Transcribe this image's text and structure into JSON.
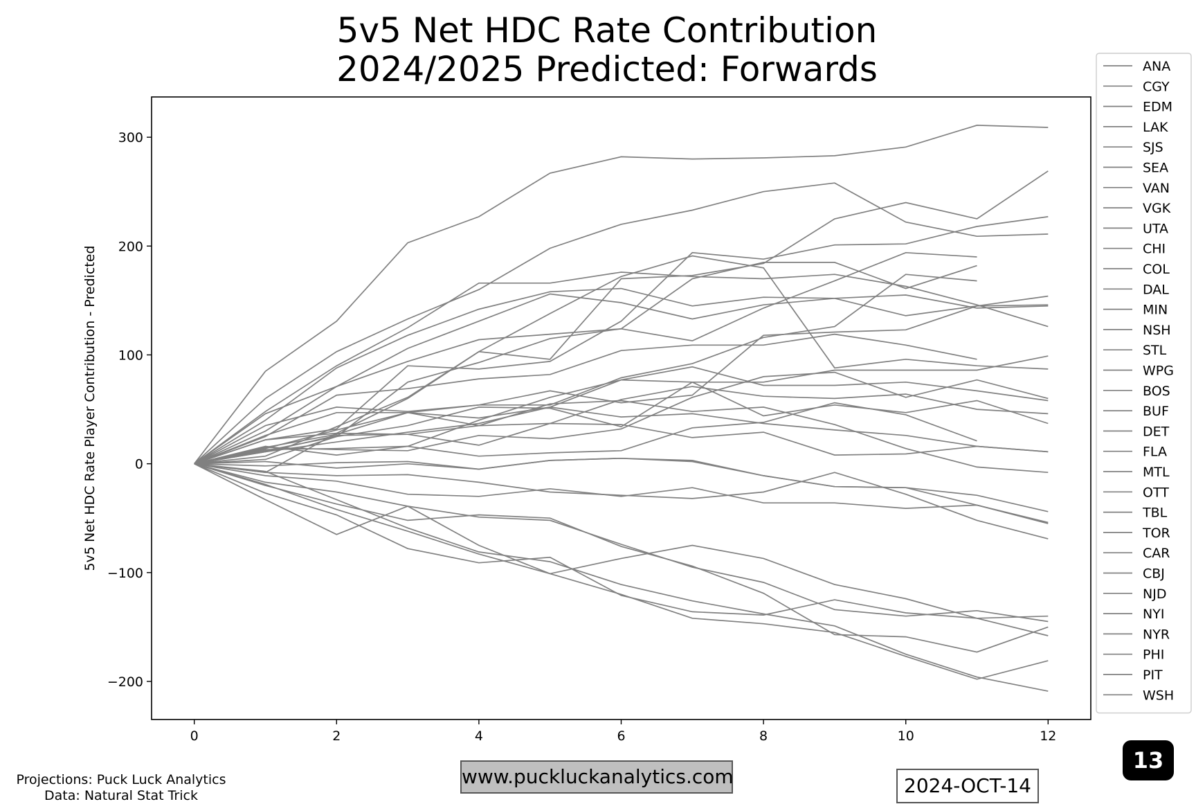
{
  "title_line1": "5v5 Net HDC Rate Contribution",
  "title_line2": "2024/2025 Predicted: Forwards",
  "footer": {
    "credit_line1": "Projections: Puck Luck Analytics",
    "credit_line2": "Data: Natural Stat Trick",
    "url": "www.puckluckanalytics.com",
    "date": "2024-OCT-14",
    "badge": "13"
  },
  "chart_data": {
    "type": "line",
    "title": "5v5 Net HDC Rate Contribution 2024/2025 Predicted: Forwards",
    "xlabel": "",
    "ylabel": "5v5 Net HDC Rate Player Contribution - Predicted",
    "xlim": [
      -0.6,
      12.6
    ],
    "ylim": [
      -235,
      337
    ],
    "xticks": [
      0,
      2,
      4,
      6,
      8,
      10,
      12
    ],
    "yticks": [
      -200,
      -100,
      0,
      100,
      200,
      300
    ],
    "ytick_labels": [
      "−200",
      "−100",
      "0",
      "100",
      "200",
      "300"
    ],
    "grid": false,
    "legend_position": "right-outside",
    "line_color": "#808080",
    "series": [
      {
        "name": "ANA",
        "values": [
          0,
          85,
          131,
          203,
          227,
          267,
          282,
          280,
          281,
          283,
          291,
          311,
          309
        ]
      },
      {
        "name": "CGY",
        "values": [
          0,
          60,
          103,
          133,
          160,
          198,
          220,
          233,
          250,
          258,
          222,
          209,
          211
        ]
      },
      {
        "name": "EDM",
        "values": [
          0,
          48,
          90,
          125,
          166,
          166,
          176,
          172,
          170,
          174,
          163,
          146,
          126
        ]
      },
      {
        "name": "LAK",
        "values": [
          0,
          40,
          88,
          118,
          142,
          158,
          161,
          145,
          153,
          152,
          155,
          143,
          145
        ]
      },
      {
        "name": "SJS",
        "values": [
          0,
          30,
          71,
          106,
          131,
          156,
          148,
          133,
          146,
          152,
          136,
          145,
          154
        ]
      },
      {
        "name": "SEA",
        "values": [
          0,
          46,
          71,
          94,
          114,
          119,
          124,
          113,
          143,
          168,
          194,
          190,
          null
        ]
      },
      {
        "name": "VAN",
        "values": [
          0,
          25,
          63,
          69,
          78,
          82,
          104,
          109,
          109,
          119,
          109,
          96,
          null
        ]
      },
      {
        "name": "VGK",
        "values": [
          0,
          35,
          52,
          48,
          54,
          67,
          56,
          63,
          118,
          121,
          123,
          145,
          146
        ]
      },
      {
        "name": "UTA",
        "values": [
          0,
          22,
          32,
          90,
          87,
          94,
          131,
          194,
          188,
          201,
          202,
          218,
          227
        ]
      },
      {
        "name": "CHI",
        "values": [
          0,
          15,
          27,
          47,
          54,
          54,
          79,
          92,
          116,
          126,
          174,
          168,
          null
        ]
      },
      {
        "name": "COL",
        "values": [
          0,
          12,
          25,
          75,
          93,
          115,
          124,
          170,
          185,
          185,
          161,
          182,
          null
        ]
      },
      {
        "name": "DAL",
        "values": [
          0,
          -8,
          28,
          60,
          103,
          96,
          170,
          173,
          184,
          225,
          240,
          225,
          269
        ]
      },
      {
        "name": "MIN",
        "values": [
          0,
          26,
          47,
          47,
          42,
          52,
          77,
          89,
          72,
          72,
          75,
          67,
          58
        ]
      },
      {
        "name": "NSH",
        "values": [
          0,
          14,
          31,
          47,
          35,
          55,
          58,
          48,
          52,
          36,
          14,
          -3,
          -8
        ]
      },
      {
        "name": "STL",
        "values": [
          0,
          11,
          26,
          27,
          35,
          37,
          36,
          24,
          29,
          8,
          9,
          16,
          11
        ]
      },
      {
        "name": "WPG",
        "values": [
          0,
          7,
          34,
          61,
          103,
          138,
          172,
          191,
          180,
          88,
          96,
          90,
          87
        ]
      },
      {
        "name": "BOS",
        "values": [
          0,
          4,
          25,
          35,
          52,
          51,
          34,
          75,
          75,
          86,
          86,
          86,
          99
        ]
      },
      {
        "name": "BUF",
        "values": [
          0,
          15,
          13,
          12,
          26,
          23,
          32,
          61,
          80,
          84,
          61,
          77,
          60
        ]
      },
      {
        "name": "DET",
        "values": [
          0,
          22,
          28,
          27,
          17,
          37,
          59,
          71,
          62,
          60,
          64,
          50,
          46
        ]
      },
      {
        "name": "FLA",
        "values": [
          0,
          16,
          8,
          16,
          40,
          61,
          77,
          75,
          44,
          54,
          47,
          58,
          37
        ]
      },
      {
        "name": "MTL",
        "values": [
          0,
          13,
          14,
          16,
          7,
          10,
          12,
          33,
          38,
          56,
          45,
          21,
          null
        ]
      },
      {
        "name": "OTT",
        "values": [
          0,
          11,
          20,
          29,
          37,
          52,
          43,
          46,
          37,
          31,
          26,
          16,
          11
        ]
      },
      {
        "name": "TBL",
        "values": [
          0,
          2,
          -4,
          0,
          -5,
          3,
          5,
          2,
          -11,
          -21,
          -22,
          -29,
          -44
        ]
      },
      {
        "name": "TOR",
        "values": [
          0,
          -2,
          1,
          2,
          -5,
          3,
          5,
          3,
          -11,
          -21,
          -22,
          -38,
          -54
        ]
      },
      {
        "name": "CAR",
        "values": [
          0,
          -8,
          -11,
          -10,
          -17,
          -26,
          -29,
          -32,
          -26,
          -8,
          -28,
          -52,
          -69
        ]
      },
      {
        "name": "CBJ",
        "values": [
          0,
          -11,
          -16,
          -28,
          -30,
          -23,
          -30,
          -22,
          -36,
          -36,
          -41,
          -38,
          -55
        ]
      },
      {
        "name": "NJD",
        "values": [
          0,
          -17,
          -26,
          -39,
          -49,
          -52,
          -74,
          -95,
          -109,
          -134,
          -140,
          -135,
          -145
        ]
      },
      {
        "name": "NYI",
        "values": [
          0,
          -19,
          -42,
          -62,
          -83,
          -101,
          -120,
          -142,
          -147,
          -155,
          -177,
          -198,
          -181
        ]
      },
      {
        "name": "NYR",
        "values": [
          0,
          -27,
          -47,
          -78,
          -91,
          -86,
          -121,
          -136,
          -139,
          -125,
          -137,
          -142,
          -158
        ]
      },
      {
        "name": "PHI",
        "values": [
          0,
          -33,
          -65,
          -39,
          -75,
          -101,
          -87,
          -75,
          -87,
          -111,
          -124,
          -142,
          -140
        ]
      },
      {
        "name": "PIT",
        "values": [
          0,
          -20,
          -37,
          -52,
          -47,
          -50,
          -76,
          -94,
          -119,
          -157,
          -159,
          -173,
          -150
        ]
      },
      {
        "name": "WSH",
        "values": [
          0,
          -7,
          -33,
          -59,
          -81,
          -90,
          -111,
          -126,
          -138,
          -149,
          -175,
          -196,
          -209
        ]
      }
    ]
  }
}
